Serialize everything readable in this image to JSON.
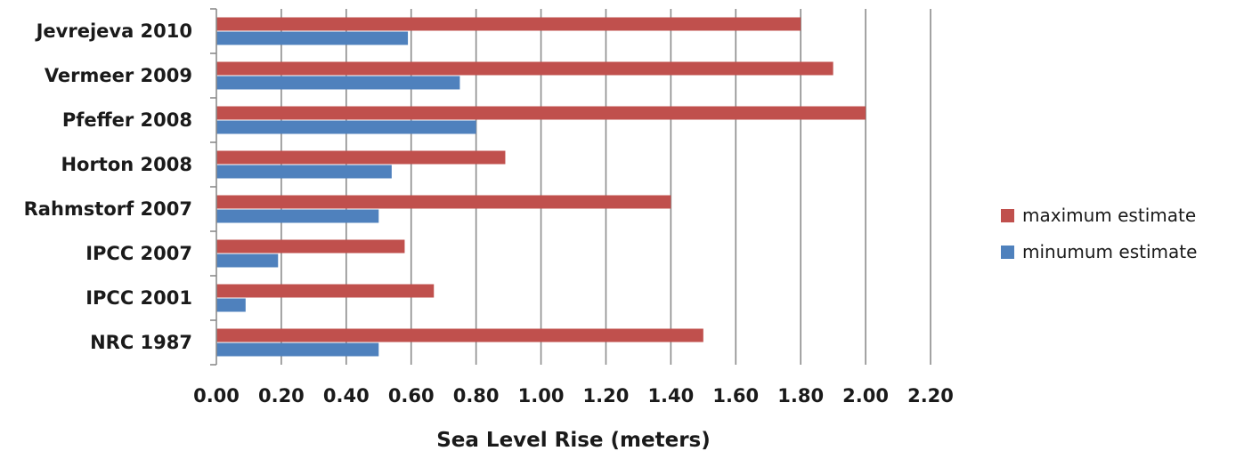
{
  "chart_data": {
    "type": "bar",
    "orientation": "horizontal",
    "categories": [
      "Jevrejeva 2010",
      "Vermeer 2009",
      "Pfeffer 2008",
      "Horton 2008",
      "Rahmstorf 2007",
      "IPCC 2007",
      "IPCC 2001",
      "NRC 1987"
    ],
    "series": [
      {
        "name": "maximum estimate",
        "color": "#c0504d",
        "values": [
          1.8,
          1.9,
          2.0,
          0.89,
          1.4,
          0.58,
          0.67,
          1.5
        ]
      },
      {
        "name": "minumum estimate",
        "color": "#4f81bd",
        "values": [
          0.59,
          0.75,
          0.8,
          0.54,
          0.5,
          0.19,
          0.09,
          0.5
        ]
      }
    ],
    "xlabel": "Sea Level Rise (meters)",
    "ylabel": "",
    "title": "",
    "xlim": [
      0,
      2.2
    ],
    "xticks": [
      "0.00",
      "0.20",
      "0.40",
      "0.60",
      "0.80",
      "1.00",
      "1.20",
      "1.40",
      "1.60",
      "1.80",
      "2.00",
      "2.20"
    ],
    "grid": true,
    "gridline_color": "#8c8c8c",
    "legend_position": "right"
  }
}
